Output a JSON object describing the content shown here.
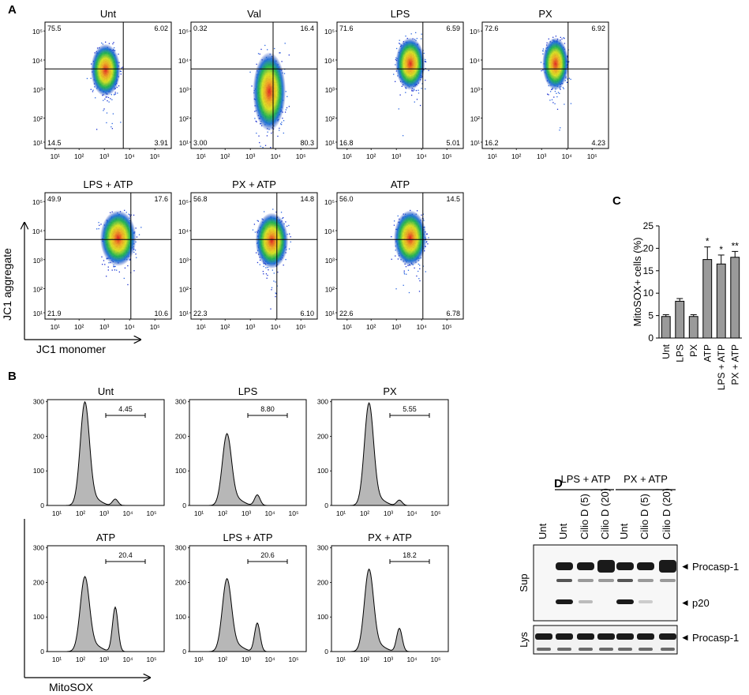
{
  "panels": {
    "a": "A",
    "b": "B",
    "c": "C",
    "d": "D"
  },
  "jc1": {
    "y_axis_label": "JC1 aggregate",
    "x_axis_label": "JC1 monomer",
    "tick_labels": [
      "10¹",
      "10²",
      "10³",
      "10⁴",
      "10⁵"
    ],
    "plots": [
      {
        "title": "Unt",
        "tl": "75.5",
        "tr": "6.02",
        "bl": "14.5",
        "br": "3.91"
      },
      {
        "title": "Val",
        "tl": "0.32",
        "tr": "16.4",
        "bl": "3.00",
        "br": "80.3"
      },
      {
        "title": "LPS",
        "tl": "71.6",
        "tr": "6.59",
        "bl": "16.8",
        "br": "5.01"
      },
      {
        "title": "PX",
        "tl": "72.6",
        "tr": "6.92",
        "bl": "16.2",
        "br": "4.23"
      },
      {
        "title": "LPS + ATP",
        "tl": "49.9",
        "tr": "17.6",
        "bl": "21.9",
        "br": "10.6"
      },
      {
        "title": "PX + ATP",
        "tl": "56.8",
        "tr": "14.8",
        "bl": "22.3",
        "br": "6.10"
      },
      {
        "title": "ATP",
        "tl": "56.0",
        "tr": "14.5",
        "bl": "22.6",
        "br": "6.78"
      }
    ]
  },
  "mitosox": {
    "x_axis_label": "MitoSOX",
    "y_ticks": [
      "0",
      "100",
      "200",
      "300"
    ],
    "tick_labels": [
      "10¹",
      "10²",
      "10³",
      "10⁴",
      "10⁵"
    ],
    "histograms": [
      {
        "title": "Unt",
        "gate": "4.45"
      },
      {
        "title": "LPS",
        "gate": "8.80"
      },
      {
        "title": "PX",
        "gate": "5.55"
      },
      {
        "title": "ATP",
        "gate": "20.4"
      },
      {
        "title": "LPS + ATP",
        "gate": "20.6"
      },
      {
        "title": "PX + ATP",
        "gate": "18.2"
      }
    ]
  },
  "chart_data": {
    "type": "bar",
    "title": "",
    "ylabel": "MitoSOX+ cells (%)",
    "xlabel": "",
    "categories": [
      "Unt",
      "LPS",
      "PX",
      "ATP",
      "LPS + ATP",
      "PX + ATP"
    ],
    "values": [
      4.8,
      8.2,
      4.8,
      17.5,
      16.5,
      18.0
    ],
    "errors": [
      0.4,
      0.6,
      0.4,
      2.8,
      2.0,
      1.3
    ],
    "significance": [
      "",
      "",
      "",
      "*",
      "*",
      "**"
    ],
    "ylim": [
      0,
      25
    ],
    "yticks": [
      "0",
      "5",
      "10",
      "15",
      "20",
      "25"
    ]
  },
  "blot": {
    "groups": [
      "LPS + ATP",
      "PX + ATP"
    ],
    "lanes": [
      "Unt",
      "Unt",
      "Cilio D (5)",
      "Cilio D (20)",
      "Unt",
      "Cilio D (5)",
      "Cilio D (20)"
    ],
    "sup_label": "Sup",
    "lys_label": "Lys",
    "band_procasp": "Procasp-1",
    "band_p20": "p20",
    "band_procasp_lys": "Procasp-1",
    "arrow": "◄"
  }
}
